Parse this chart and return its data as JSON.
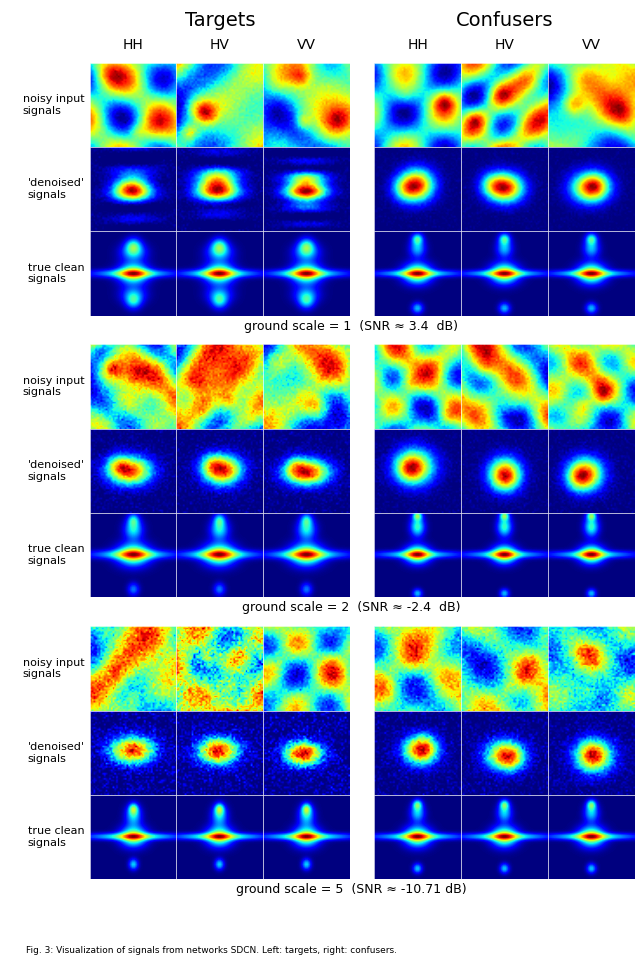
{
  "title_targets": "Targets",
  "title_confusers": "Confusers",
  "col_labels": [
    "HH",
    "HV",
    "VV"
  ],
  "row_labels": [
    "noisy input\nsignals",
    "'denoised'\nsignals",
    "true clean\nsignals"
  ],
  "scale_labels": [
    "ground scale = 1  (SNR ≈ 3.4  dB)",
    "ground scale = 2  (SNR ≈ -2.4  dB)",
    "ground scale = 5  (SNR ≈ -10.71 dB)"
  ],
  "n_scales": 3,
  "n_rows": 3,
  "n_cols": 3,
  "fig_width": 6.4,
  "fig_height": 9.63,
  "background": "white",
  "title_fontsize": 14,
  "col_label_fontsize": 10,
  "row_label_fontsize": 8,
  "scale_label_fontsize": 9,
  "caption": "Fig. 3: Visualization of signals from networks SDCN. Left: targets, right: confusers."
}
